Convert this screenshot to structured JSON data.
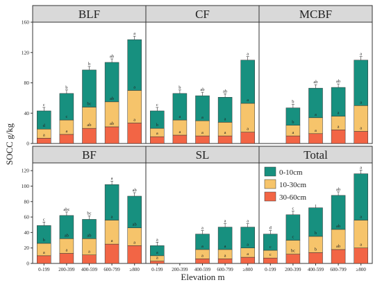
{
  "chart_data": {
    "type": "bar",
    "stacked": true,
    "ylabel": "SOCC g/kg",
    "xlabel": "Elevation m",
    "categories": [
      "0-199",
      "200-399",
      "400-599",
      "600-799",
      "≥800"
    ],
    "ylim": [
      0,
      160
    ],
    "yticks": [
      0,
      40,
      80,
      120,
      160
    ],
    "ylim_bottom_row": [
      0,
      130
    ],
    "yticks_bottom_row": [
      0,
      20,
      40,
      60,
      80,
      100,
      120
    ],
    "legend": {
      "items": [
        "0-10cm",
        "10-30cm",
        "30-60cm"
      ],
      "colors": [
        "#17907F",
        "#F6C46B",
        "#F26545"
      ],
      "placement": "top-right of Total panel"
    },
    "panels": [
      {
        "name": "BLF",
        "present": [
          true,
          true,
          true,
          true,
          true
        ],
        "layer30_60": [
          7,
          12,
          20,
          22,
          27
        ],
        "layer10_30": [
          12,
          19,
          28,
          33,
          43
        ],
        "layer0_10": [
          24,
          35,
          49,
          52,
          67
        ],
        "sig_top": [
          "c",
          "b",
          "b",
          "ab",
          "a"
        ],
        "sig_mid": [
          "d",
          "c",
          "bc",
          "ab",
          "a"
        ],
        "sig_bot": [
          "a",
          "a",
          "ab",
          "ab",
          "a"
        ]
      },
      {
        "name": "CF",
        "present": [
          true,
          true,
          true,
          true,
          true
        ],
        "layer30_60": [
          9,
          11,
          10,
          10,
          15
        ],
        "layer10_30": [
          11,
          20,
          20,
          18,
          38
        ],
        "layer0_10": [
          23,
          35,
          33,
          33,
          57
        ],
        "sig_top": [
          "c",
          "b",
          "ab",
          "ab",
          "a"
        ],
        "sig_mid": [
          "b",
          "a",
          "a",
          "a",
          "a"
        ],
        "sig_bot": [
          "a",
          "a",
          "a",
          "a",
          "a"
        ]
      },
      {
        "name": "MCBF",
        "present": [
          false,
          true,
          true,
          true,
          true
        ],
        "layer30_60": [
          0,
          10,
          13,
          18,
          16
        ],
        "layer10_30": [
          0,
          14,
          21,
          18,
          34
        ],
        "layer0_10": [
          0,
          23,
          39,
          38,
          60
        ],
        "sig_top": [
          "",
          "b",
          "ab",
          "ab",
          "a"
        ],
        "sig_mid": [
          "",
          "b",
          "a",
          "a",
          "a"
        ],
        "sig_bot": [
          "",
          "a",
          "a",
          "a",
          "a"
        ]
      },
      {
        "name": "BF",
        "present": [
          true,
          true,
          true,
          true,
          true
        ],
        "layer30_60": [
          10,
          13,
          11,
          25,
          23
        ],
        "layer10_30": [
          16,
          19,
          21,
          31,
          23
        ],
        "layer0_10": [
          23,
          30,
          25,
          46,
          41
        ],
        "sig_top": [
          "c",
          "abc",
          "bc",
          "a",
          "ab"
        ],
        "sig_mid": [
          "b",
          "ab",
          "ab",
          "a",
          "ab"
        ],
        "sig_bot": [
          "a",
          "a",
          "a",
          "a",
          "a"
        ]
      },
      {
        "name": "SL",
        "present": [
          true,
          false,
          true,
          true,
          true
        ],
        "layer30_60": [
          3,
          0,
          6,
          6,
          8
        ],
        "layer10_30": [
          7,
          0,
          12,
          12,
          12
        ],
        "layer0_10": [
          13,
          0,
          20,
          29,
          27
        ],
        "sig_top": [
          "a",
          "",
          "a",
          "a",
          "a"
        ],
        "sig_mid": [
          "a",
          "",
          "a",
          "a",
          "a"
        ],
        "sig_bot": [
          "a",
          "",
          "a",
          "a",
          "a"
        ]
      },
      {
        "name": "Total",
        "present": [
          true,
          true,
          true,
          true,
          true
        ],
        "layer30_60": [
          7,
          12,
          14,
          18,
          20
        ],
        "layer10_30": [
          10,
          18,
          21,
          26,
          36
        ],
        "layer0_10": [
          21,
          33,
          37,
          44,
          60
        ],
        "sig_top": [
          "d",
          "c",
          "bc",
          "ab",
          "a"
        ],
        "sig_mid": [
          "c",
          "c",
          "b",
          "ab",
          "a"
        ],
        "sig_bot": [
          "c",
          "bc",
          "b",
          "ab",
          "a"
        ]
      }
    ]
  }
}
